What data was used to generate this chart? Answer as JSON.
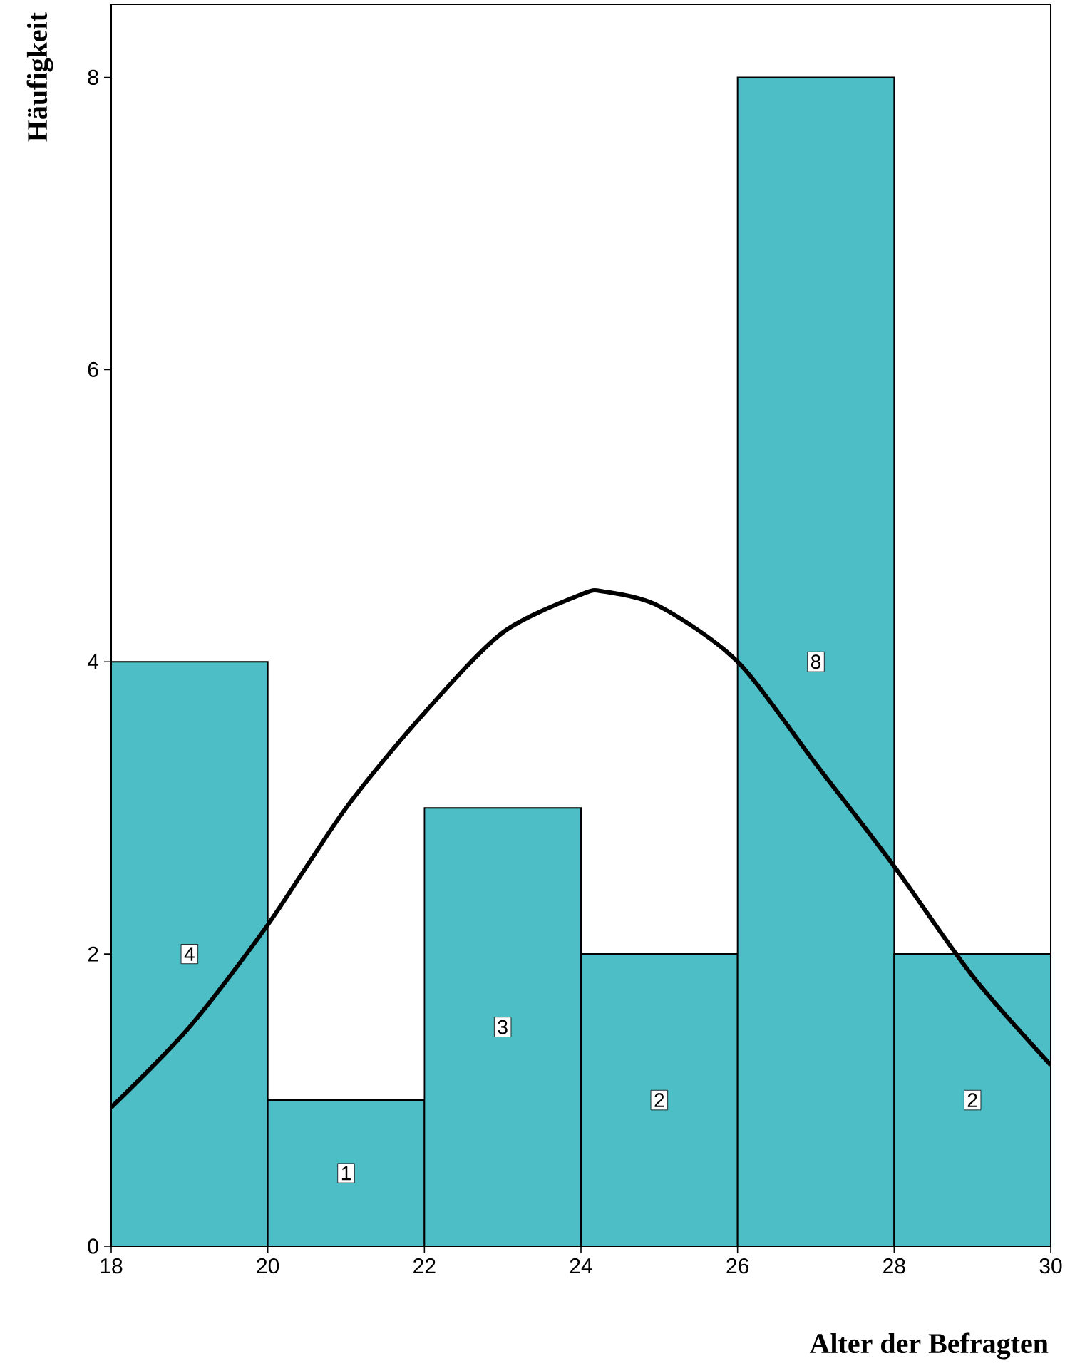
{
  "chart_data": {
    "type": "histogram",
    "xlabel": "Alter der Befragten",
    "ylabel": "Häufigkeit",
    "bins": [
      18,
      20,
      22,
      24,
      26,
      28,
      30
    ],
    "values": [
      4,
      1,
      3,
      2,
      8,
      2
    ],
    "color": "#4dbec6",
    "value_labels": [
      "4",
      "1",
      "3",
      "2",
      "8",
      "2"
    ],
    "xlim": [
      18,
      30
    ],
    "ylim": [
      0,
      8.5
    ],
    "xticks": [
      18,
      20,
      22,
      24,
      26,
      28,
      30
    ],
    "yticks": [
      0,
      2,
      4,
      6,
      8
    ],
    "grid": false,
    "series": [
      {
        "type": "line",
        "color": "#000000",
        "x": [
          18,
          19,
          20,
          21,
          22,
          23,
          24,
          24.3,
          25,
          26,
          27,
          28,
          29,
          30
        ],
        "values": [
          0.95,
          1.5,
          2.2,
          3.0,
          3.65,
          4.2,
          4.46,
          4.48,
          4.38,
          4.0,
          3.3,
          2.6,
          1.85,
          1.24
        ]
      }
    ]
  }
}
